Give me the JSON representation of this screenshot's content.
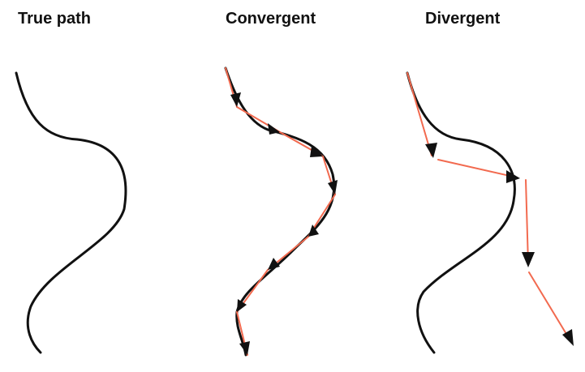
{
  "titles": {
    "true_path": "True path",
    "convergent": "Convergent",
    "divergent": "Divergent"
  },
  "colors": {
    "path": "#111111",
    "step": "#f26a4f",
    "arrow": "#111111"
  }
}
